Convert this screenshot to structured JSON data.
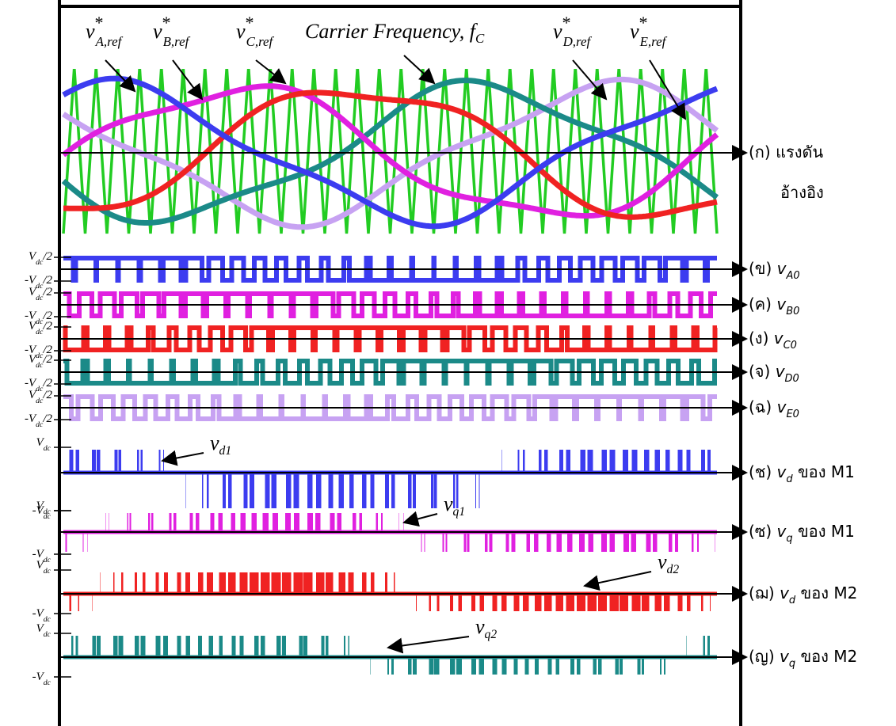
{
  "reference": {
    "labels": [
      {
        "base": "v",
        "sup": "*",
        "sub": "A,ref"
      },
      {
        "base": "v",
        "sup": "*",
        "sub": "B,ref"
      },
      {
        "base": "v",
        "sup": "*",
        "sub": "C,ref"
      },
      {
        "base": "v",
        "sup": "*",
        "sub": "D,ref"
      },
      {
        "base": "v",
        "sup": "*",
        "sub": "E,ref"
      }
    ],
    "carrier": {
      "prefix": "Carrier Frequency, ",
      "base": "f",
      "sub": "C"
    },
    "caption": [
      "(ก) แรงดัน",
      "อ้างอิง"
    ]
  },
  "phase_voltages": [
    {
      "caption": {
        "prefix": "(ข) ",
        "base": "v",
        "sub": "A0"
      },
      "upper": {
        "base": "V",
        "sub": "dc",
        "suffix": "/2"
      },
      "lower": {
        "prefix": "-",
        "base": "V",
        "sub": "dc",
        "suffix": "/2"
      }
    },
    {
      "caption": {
        "prefix": "(ค) ",
        "base": "v",
        "sub": "B0"
      },
      "upper": {
        "base": "V",
        "sub": "dc",
        "suffix": "/2"
      },
      "lower": {
        "prefix": "-",
        "base": "V",
        "sub": "dc",
        "suffix": "/2"
      }
    },
    {
      "caption": {
        "prefix": "(ง) ",
        "base": "v",
        "sub": "C0"
      },
      "upper": {
        "base": "V",
        "sub": "dc",
        "suffix": "/2"
      },
      "lower": {
        "prefix": "-",
        "base": "V",
        "sub": "dc",
        "suffix": "/2"
      }
    },
    {
      "caption": {
        "prefix": "(จ) ",
        "base": "v",
        "sub": "D0"
      },
      "upper": {
        "base": "V",
        "sub": "dc",
        "suffix": "/2"
      },
      "lower": {
        "prefix": "-",
        "base": "V",
        "sub": "dc",
        "suffix": "/2"
      }
    },
    {
      "caption": {
        "prefix": "(ฉ) ",
        "base": "v",
        "sub": "E0"
      },
      "upper": {
        "base": "V",
        "sub": "dc",
        "suffix": "/2"
      },
      "lower": {
        "prefix": "-",
        "base": "V",
        "sub": "dc",
        "suffix": "/2"
      }
    }
  ],
  "line_voltages": [
    {
      "caption": {
        "prefix": "(ช) ",
        "base": "v",
        "sub": "d",
        "suffix": " ของ M1"
      },
      "upper": {
        "base": "V",
        "sub": "dc"
      },
      "lower": {
        "prefix": "-",
        "base": "V",
        "sub": "dc"
      },
      "label": {
        "base": "v",
        "sub": "d1"
      }
    },
    {
      "caption": {
        "prefix": "(ซ) ",
        "base": "v",
        "sub": "q",
        "suffix": " ของ M1"
      },
      "upper": {
        "base": "V",
        "sub": "dc"
      },
      "lower": {
        "prefix": "-",
        "base": "V",
        "sub": "dc"
      },
      "label": {
        "base": "v",
        "sub": "q1"
      }
    },
    {
      "caption": {
        "prefix": "(ฌ) ",
        "base": "v",
        "sub": "d",
        "suffix": " ของ M2"
      },
      "upper": {
        "base": "V",
        "sub": "dc"
      },
      "lower": {
        "prefix": "-",
        "base": "V",
        "sub": "dc"
      },
      "label": {
        "base": "v",
        "sub": "d2"
      }
    },
    {
      "caption": {
        "prefix": "(ญ) ",
        "base": "v",
        "sub": "q",
        "suffix": " ของ M2"
      },
      "upper": {
        "base": "V",
        "sub": "dc"
      },
      "lower": {
        "prefix": "-",
        "base": "V",
        "sub": "dc"
      },
      "label": {
        "base": "v",
        "sub": "q2"
      }
    }
  ]
}
